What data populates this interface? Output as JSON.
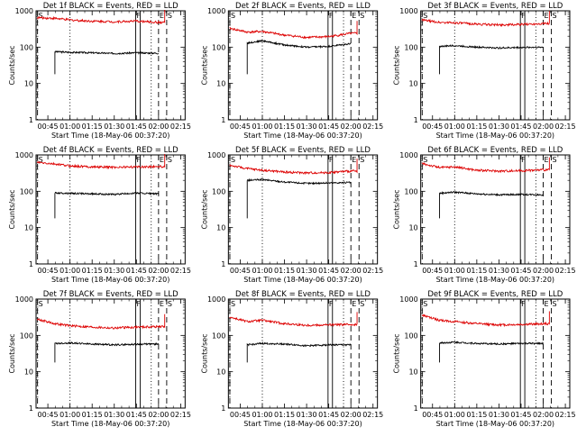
{
  "layout": {
    "rows": 3,
    "cols": 3
  },
  "common": {
    "ylabel": "Counts/sec",
    "xlabel": "Start Time (18-May-06 00:37:20)",
    "xticks": [
      "00:45",
      "01:00",
      "01:15",
      "01:30",
      "01:45",
      "02:00",
      "02:15"
    ],
    "yticks": [
      "1",
      "10",
      "100",
      "1000"
    ],
    "colors": {
      "events": "#000000",
      "lld": "#dd0000"
    },
    "flags": [
      "F",
      "E",
      "S"
    ]
  },
  "chart_data": [
    {
      "type": "line",
      "title": "Det 1f BLACK = Events, RED = LLD",
      "xlabel": "Start Time (18-May-06 00:37:20)",
      "ylabel": "Counts/sec",
      "xlim": [
        0.6167,
        2.3
      ],
      "ylim": [
        1,
        1000
      ],
      "series": [
        {
          "name": "Events",
          "color": "#000000",
          "start": 0.83,
          "end": 2.0,
          "x": [
            0.83,
            1.0,
            1.25,
            1.5,
            1.75,
            2.0
          ],
          "values": [
            75,
            72,
            70,
            67,
            70,
            68
          ]
        },
        {
          "name": "LLD",
          "color": "#dd0000",
          "start": 0.63,
          "end": 2.07,
          "x": [
            0.63,
            0.83,
            1.0,
            1.25,
            1.5,
            1.75,
            2.0
          ],
          "values": [
            650,
            620,
            560,
            520,
            500,
            520,
            480
          ]
        }
      ]
    },
    {
      "type": "line",
      "title": "Det 2f BLACK = Events, RED = LLD",
      "xlabel": "Start Time (18-May-06 00:37:20)",
      "ylabel": "Counts/sec",
      "xlim": [
        0.6167,
        2.3
      ],
      "ylim": [
        1,
        1000
      ],
      "series": [
        {
          "name": "Events",
          "color": "#000000",
          "start": 0.83,
          "end": 2.0,
          "x": [
            0.83,
            1.0,
            1.25,
            1.5,
            1.75,
            2.0
          ],
          "values": [
            130,
            150,
            115,
            100,
            105,
            125
          ]
        },
        {
          "name": "LLD",
          "color": "#dd0000",
          "start": 0.63,
          "end": 2.07,
          "x": [
            0.63,
            0.83,
            1.0,
            1.25,
            1.5,
            1.75,
            2.0
          ],
          "values": [
            330,
            260,
            270,
            215,
            185,
            195,
            240
          ]
        }
      ]
    },
    {
      "type": "line",
      "title": "Det 3f BLACK = Events, RED = LLD",
      "xlabel": "Start Time (18-May-06 00:37:20)",
      "ylabel": "Counts/sec",
      "xlim": [
        0.6167,
        2.3
      ],
      "ylim": [
        1,
        1000
      ],
      "series": [
        {
          "name": "Events",
          "color": "#000000",
          "start": 0.83,
          "end": 2.0,
          "x": [
            0.83,
            1.0,
            1.25,
            1.5,
            1.75,
            2.0
          ],
          "values": [
            105,
            110,
            100,
            95,
            98,
            100
          ]
        },
        {
          "name": "LLD",
          "color": "#dd0000",
          "start": 0.63,
          "end": 2.07,
          "x": [
            0.63,
            0.83,
            1.0,
            1.25,
            1.5,
            1.75,
            2.0
          ],
          "values": [
            560,
            480,
            470,
            430,
            410,
            420,
            450
          ]
        }
      ]
    },
    {
      "type": "line",
      "title": "Det 4f BLACK = Events, RED = LLD",
      "xlabel": "Start Time (18-May-06 00:37:20)",
      "ylabel": "Counts/sec",
      "xlim": [
        0.6167,
        2.3
      ],
      "ylim": [
        1,
        1000
      ],
      "series": [
        {
          "name": "Events",
          "color": "#000000",
          "start": 0.83,
          "end": 2.0,
          "x": [
            0.83,
            1.0,
            1.25,
            1.5,
            1.75,
            2.0
          ],
          "values": [
            90,
            88,
            85,
            82,
            90,
            85
          ]
        },
        {
          "name": "LLD",
          "color": "#dd0000",
          "start": 0.63,
          "end": 2.07,
          "x": [
            0.63,
            0.83,
            1.0,
            1.25,
            1.5,
            1.75,
            2.0
          ],
          "values": [
            620,
            560,
            500,
            470,
            460,
            470,
            480
          ]
        }
      ]
    },
    {
      "type": "line",
      "title": "Det 5f BLACK = Events, RED = LLD",
      "xlabel": "Start Time (18-May-06 00:37:20)",
      "ylabel": "Counts/sec",
      "xlim": [
        0.6167,
        2.3
      ],
      "ylim": [
        1,
        1000
      ],
      "series": [
        {
          "name": "Events",
          "color": "#000000",
          "start": 0.83,
          "end": 2.0,
          "x": [
            0.83,
            1.0,
            1.25,
            1.5,
            1.75,
            2.0
          ],
          "values": [
            200,
            210,
            180,
            165,
            170,
            175
          ]
        },
        {
          "name": "LLD",
          "color": "#dd0000",
          "start": 0.63,
          "end": 2.07,
          "x": [
            0.63,
            0.83,
            1.0,
            1.25,
            1.5,
            1.75,
            2.0
          ],
          "values": [
            520,
            420,
            380,
            340,
            320,
            330,
            360
          ]
        }
      ]
    },
    {
      "type": "line",
      "title": "Det 6f BLACK = Events, RED = LLD",
      "xlabel": "Start Time (18-May-06 00:37:20)",
      "ylabel": "Counts/sec",
      "xlim": [
        0.6167,
        2.3
      ],
      "ylim": [
        1,
        1000
      ],
      "series": [
        {
          "name": "Events",
          "color": "#000000",
          "start": 0.83,
          "end": 2.0,
          "x": [
            0.83,
            1.0,
            1.25,
            1.5,
            1.75,
            2.0
          ],
          "values": [
            88,
            95,
            85,
            80,
            82,
            80
          ]
        },
        {
          "name": "LLD",
          "color": "#dd0000",
          "start": 0.63,
          "end": 2.07,
          "x": [
            0.63,
            0.83,
            1.0,
            1.25,
            1.5,
            1.75,
            2.0
          ],
          "values": [
            580,
            450,
            470,
            380,
            360,
            370,
            390
          ]
        }
      ]
    },
    {
      "type": "line",
      "title": "Det 7f BLACK = Events, RED = LLD",
      "xlabel": "Start Time (18-May-06 00:37:20)",
      "ylabel": "Counts/sec",
      "xlim": [
        0.6167,
        2.3
      ],
      "ylim": [
        1,
        1000
      ],
      "series": [
        {
          "name": "Events",
          "color": "#000000",
          "start": 0.83,
          "end": 2.0,
          "x": [
            0.83,
            1.0,
            1.25,
            1.5,
            1.75,
            2.0
          ],
          "values": [
            60,
            62,
            58,
            55,
            57,
            58
          ]
        },
        {
          "name": "LLD",
          "color": "#dd0000",
          "start": 0.63,
          "end": 2.07,
          "x": [
            0.63,
            0.83,
            1.0,
            1.25,
            1.5,
            1.75,
            2.0
          ],
          "values": [
            280,
            210,
            185,
            170,
            160,
            170,
            175
          ]
        }
      ]
    },
    {
      "type": "line",
      "title": "Det 8f BLACK = Events, RED = LLD",
      "xlabel": "Start Time (18-May-06 00:37:20)",
      "ylabel": "Counts/sec",
      "xlim": [
        0.6167,
        2.3
      ],
      "ylim": [
        1,
        1000
      ],
      "series": [
        {
          "name": "Events",
          "color": "#000000",
          "start": 0.83,
          "end": 2.0,
          "x": [
            0.83,
            1.0,
            1.25,
            1.5,
            1.75,
            2.0
          ],
          "values": [
            55,
            60,
            58,
            52,
            55,
            55
          ]
        },
        {
          "name": "LLD",
          "color": "#dd0000",
          "start": 0.63,
          "end": 2.07,
          "x": [
            0.63,
            0.83,
            1.0,
            1.25,
            1.5,
            1.75,
            2.0
          ],
          "values": [
            320,
            240,
            260,
            210,
            190,
            195,
            200
          ]
        }
      ]
    },
    {
      "type": "line",
      "title": "Det 9f BLACK = Events, RED = LLD",
      "xlabel": "Start Time (18-May-06 00:37:20)",
      "ylabel": "Counts/sec",
      "xlim": [
        0.6167,
        2.3
      ],
      "ylim": [
        1,
        1000
      ],
      "series": [
        {
          "name": "Events",
          "color": "#000000",
          "start": 0.83,
          "end": 2.0,
          "x": [
            0.83,
            1.0,
            1.25,
            1.5,
            1.75,
            2.0
          ],
          "values": [
            62,
            65,
            60,
            58,
            60,
            60
          ]
        },
        {
          "name": "LLD",
          "color": "#dd0000",
          "start": 0.63,
          "end": 2.07,
          "x": [
            0.63,
            0.83,
            1.0,
            1.25,
            1.5,
            1.75,
            2.0
          ],
          "values": [
            360,
            260,
            240,
            210,
            195,
            200,
            210
          ]
        }
      ]
    }
  ],
  "markers": [
    {
      "label": "S",
      "x": 0.6333,
      "style": "dashed"
    },
    {
      "label": "",
      "x": 1.0,
      "style": "dotted"
    },
    {
      "label": "F",
      "x": 1.742,
      "style": "solid"
    },
    {
      "label": "",
      "x": 1.792,
      "style": "solid"
    },
    {
      "label": "",
      "x": 1.917,
      "style": "dotted"
    },
    {
      "label": "E",
      "x": 2.0,
      "style": "dashed"
    },
    {
      "label": "S",
      "x": 2.092,
      "style": "dashed"
    }
  ]
}
